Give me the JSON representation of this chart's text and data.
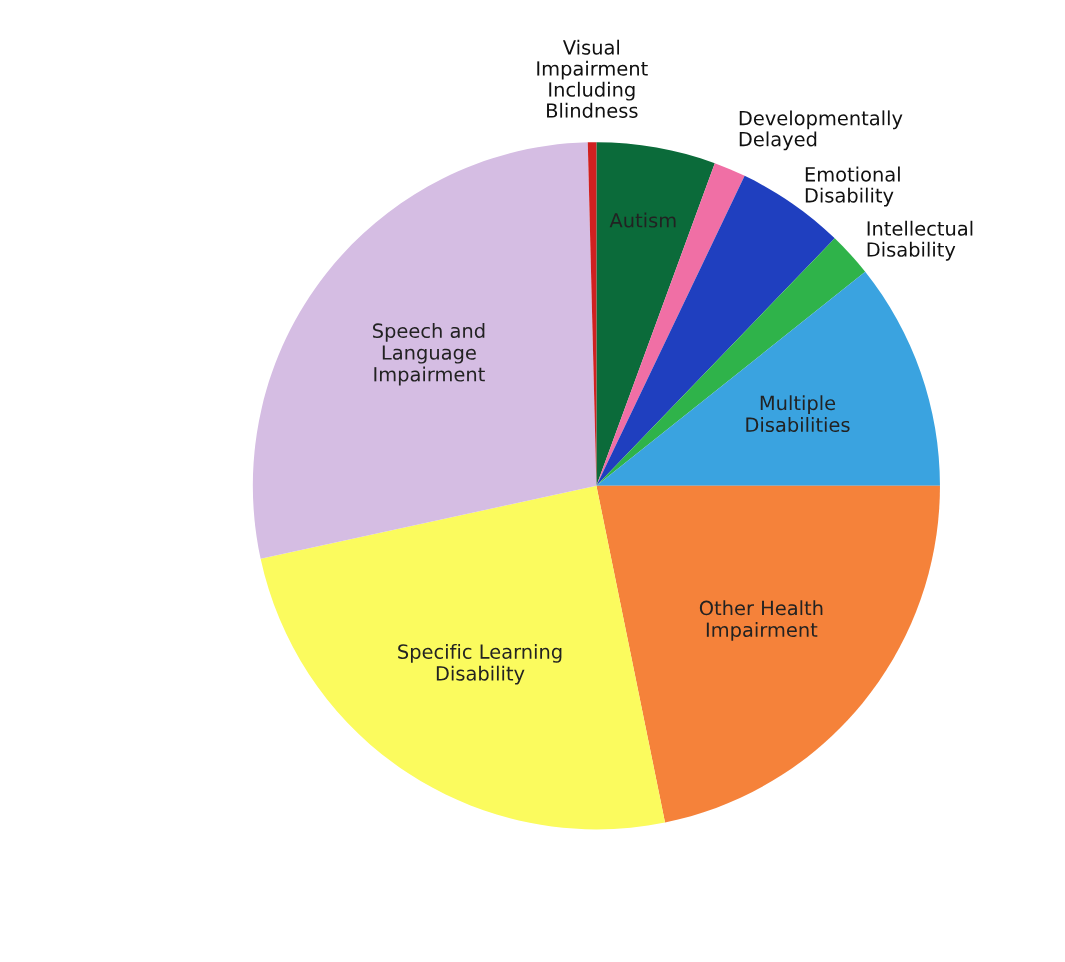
{
  "chart_data": {
    "type": "pie",
    "categories": [
      "Autism",
      "Developmentally\nDelayed",
      "Emotional\nDisability",
      "Intellectual\nDisability",
      "Multiple\nDisabilities",
      "Other Health\nImpairment",
      "Specific Learning\nDisability",
      "Speech and\nLanguage\nImpairment",
      "Visual\nImpairment\nIncluding\nBlindness"
    ],
    "values": [
      5.6,
      1.5,
      5.1,
      2.1,
      10.7,
      21.8,
      24.8,
      28.0,
      0.4
    ],
    "colors": [
      "#0b6b3a",
      "#f06fa5",
      "#1f3fbf",
      "#2fb34a",
      "#3aa3e0",
      "#f5823a",
      "#fbfb5e",
      "#d5bde3",
      "#d02020"
    ]
  }
}
